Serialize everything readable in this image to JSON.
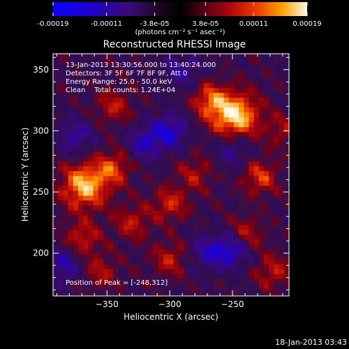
{
  "colorbar": {
    "tick_labels": [
      "-0.00019",
      "-0.00011",
      "-3.8e-05",
      "3.8e-05",
      "0.00011",
      "0.00019"
    ],
    "unit_label": "(photons cm⁻² s⁻¹ asec⁻²)"
  },
  "plot": {
    "title": "Reconstructed RHESSI Image",
    "xlabel": "Heliocentric X (arcsec)",
    "ylabel": "Heliocentric Y (arcsec)",
    "x_ticks": [
      -350,
      -300,
      -250
    ],
    "y_ticks": [
      200,
      250,
      300,
      350
    ],
    "xlim": [
      -393,
      -205
    ],
    "ylim": [
      165,
      363
    ]
  },
  "annotations": {
    "time_range": "13-Jan-2013 13:30:56.000 to 13:40:24.000",
    "detectors": "Detectors: 3F 5F 6F 7F 8F 9F, Att 0",
    "energy_range": "Energy Range: 25.0 - 50.0 keV",
    "clean_counts": "Clean    Total counts: 1.24E+04",
    "peak_position": "Position of Peak = [-248,312]"
  },
  "footer": {
    "timestamp": "18-Jan-2013 03:43"
  },
  "chart_data": {
    "type": "heatmap",
    "title": "Reconstructed RHESSI Image",
    "xlabel": "Heliocentric X (arcsec)",
    "ylabel": "Heliocentric Y (arcsec)",
    "xlim": [
      -393,
      -205
    ],
    "ylim": [
      165,
      363
    ],
    "x_ticks": [
      -350,
      -300,
      -250
    ],
    "y_ticks": [
      200,
      250,
      300,
      350
    ],
    "colorscale_range": [
      -0.00019,
      0.00019
    ],
    "colorbar_ticks": [
      -0.00019,
      -0.00011,
      -3.8e-05,
      3.8e-05,
      0.00011,
      0.00019
    ],
    "peak": {
      "x": -248,
      "y": 312
    },
    "sources": [
      {
        "x": -248,
        "y": 312,
        "value": 0.00019
      },
      {
        "x": -368,
        "y": 255,
        "value": 0.00017
      },
      {
        "x": -268,
        "y": 325,
        "value": 0.00011
      },
      {
        "x": -345,
        "y": 270,
        "value": 0.0001
      },
      {
        "x": -370,
        "y": 212,
        "value": 9e-05
      },
      {
        "x": -330,
        "y": 225,
        "value": 8e-05
      },
      {
        "x": -300,
        "y": 240,
        "value": 9e-05
      },
      {
        "x": -228,
        "y": 262,
        "value": 0.0001
      },
      {
        "x": -240,
        "y": 215,
        "value": 9e-05
      },
      {
        "x": -300,
        "y": 195,
        "value": 8e-05
      },
      {
        "x": -345,
        "y": 320,
        "value": 8e-05
      },
      {
        "x": -218,
        "y": 185,
        "value": 8e-05
      },
      {
        "x": -280,
        "y": 265,
        "value": 7e-05
      },
      {
        "x": -355,
        "y": 185,
        "value": 7e-05
      },
      {
        "x": -210,
        "y": 300,
        "value": 6e-05
      },
      {
        "x": -320,
        "y": 290,
        "value": -0.0001
      },
      {
        "x": -300,
        "y": 300,
        "value": -0.00012
      },
      {
        "x": -375,
        "y": 295,
        "value": -9e-05
      },
      {
        "x": -250,
        "y": 285,
        "value": -8e-05
      },
      {
        "x": -270,
        "y": 200,
        "value": -9e-05
      },
      {
        "x": -385,
        "y": 190,
        "value": -0.0001
      },
      {
        "x": -250,
        "y": 203,
        "value": -0.00013
      },
      {
        "x": -290,
        "y": 350,
        "value": -8e-05
      }
    ]
  }
}
